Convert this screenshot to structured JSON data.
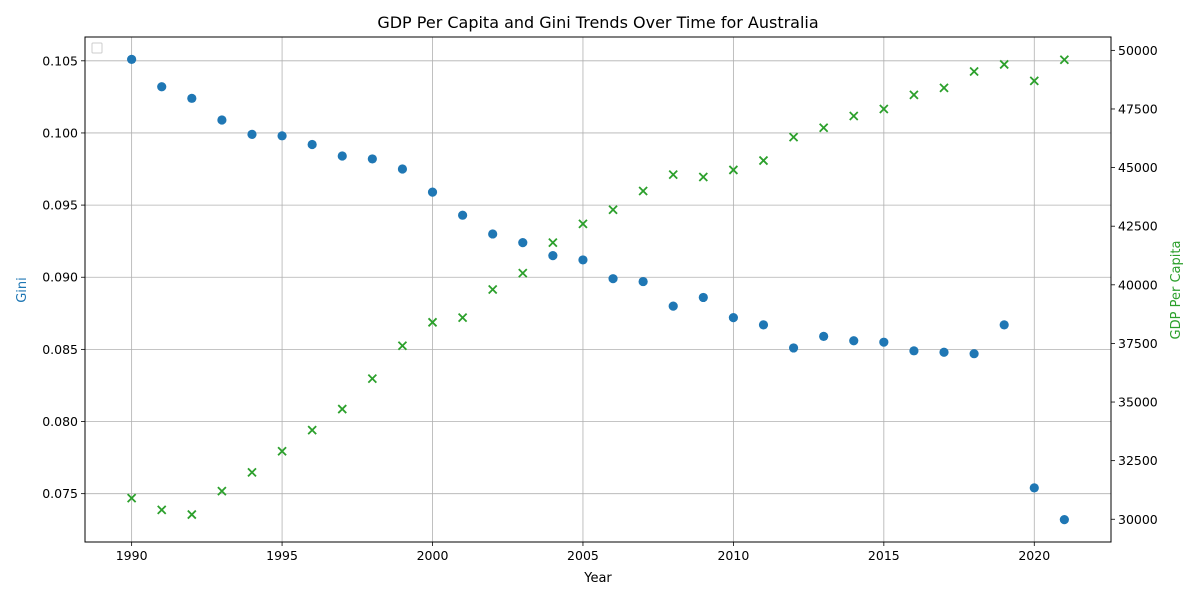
{
  "chart_data": {
    "type": "scatter",
    "title": "GDP Per Capita and Gini Trends Over Time for Australia",
    "xlabel": "Year",
    "ylabel_left": "Gini",
    "ylabel_right": "GDP Per Capita",
    "xlim": [
      1988.45,
      2022.55
    ],
    "ylim_left": [
      0.07165,
      0.10665
    ],
    "ylim_right": [
      29030,
      50570
    ],
    "x_ticks": [
      1990,
      1995,
      2000,
      2005,
      2010,
      2015,
      2020
    ],
    "y_left_ticks": [
      "0.075",
      "0.080",
      "0.085",
      "0.090",
      "0.095",
      "0.100",
      "0.105"
    ],
    "y_right_ticks": [
      "30000",
      "32500",
      "35000",
      "37500",
      "40000",
      "42500",
      "45000",
      "47500",
      "50000"
    ],
    "grid": true,
    "legend": "top-left (empty)",
    "x": [
      1990,
      1991,
      1992,
      1993,
      1994,
      1995,
      1996,
      1997,
      1998,
      1999,
      2000,
      2001,
      2002,
      2003,
      2004,
      2005,
      2006,
      2007,
      2008,
      2009,
      2010,
      2011,
      2012,
      2013,
      2014,
      2015,
      2016,
      2017,
      2018,
      2019,
      2020,
      2021
    ],
    "series": [
      {
        "axis": "left",
        "marker": "circle",
        "color": "#1f77b4",
        "values": [
          0.1051,
          0.1032,
          0.1024,
          0.1009,
          0.0999,
          0.0998,
          0.0992,
          0.0984,
          0.0982,
          0.0975,
          0.0959,
          0.0943,
          0.093,
          0.0924,
          0.0915,
          0.0912,
          0.0899,
          0.0897,
          0.088,
          0.0886,
          0.0872,
          0.0867,
          0.0851,
          0.0859,
          0.0856,
          0.0855,
          0.0849,
          0.0848,
          0.0847,
          0.0867,
          0.0754,
          0.0732
        ]
      },
      {
        "axis": "right",
        "marker": "x",
        "color": "#2ca02c",
        "values": [
          30900,
          30400,
          30200,
          31200,
          32000,
          32900,
          33800,
          34700,
          36000,
          37400,
          38400,
          38600,
          39800,
          40500,
          41800,
          42600,
          43200,
          44000,
          44700,
          44600,
          44900,
          45300,
          46300,
          46700,
          47200,
          47500,
          48100,
          48400,
          49100,
          49400,
          48700,
          49600
        ]
      }
    ]
  }
}
